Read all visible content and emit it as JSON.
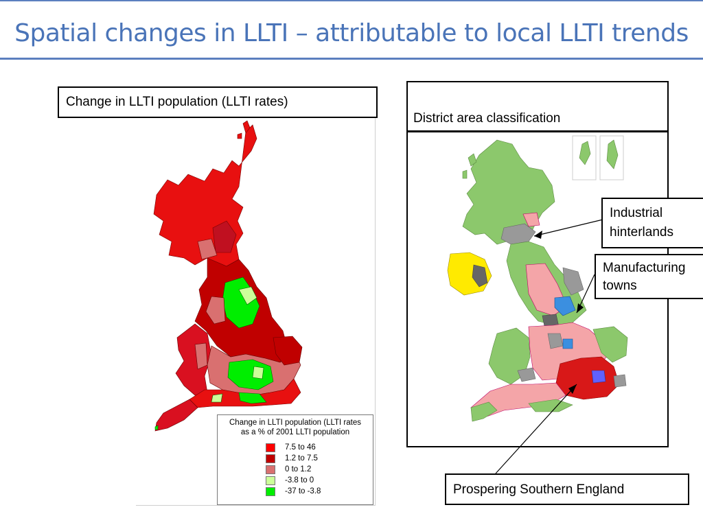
{
  "slide": {
    "title": "Spatial changes in LLTI – attributable to local LLTI trends"
  },
  "left_map": {
    "heading": "Change in LLTI population (LLTI rates)",
    "legend": {
      "title_line1": "Change in LLTI population (LLTI rates",
      "title_line2": "as a % of 2001 LLTI population",
      "items": [
        {
          "label": "7.5 to 46",
          "color": "#ff0000"
        },
        {
          "label": "1.2 to  7.5",
          "color": "#c00000"
        },
        {
          "label": "0    to  1.2",
          "color": "#d97070"
        },
        {
          "label": "-3.8 to  0",
          "color": "#ccff99"
        },
        {
          "label": "-37   to -3.8",
          "color": "#00ee00"
        }
      ]
    }
  },
  "right_map": {
    "heading": "District area classification",
    "callouts": {
      "industrial_line1": "Industrial",
      "industrial_line2": "hinterlands",
      "manufacturing_line1": "Manufacturing",
      "manufacturing_line2": "towns",
      "southern": "Prospering Southern England"
    }
  },
  "colors": {
    "title": "#4a74b8",
    "rule": "#5b7fbf",
    "classification_green": "#8cc86c",
    "classification_pink": "#f4a5a8",
    "classification_red": "#d81818",
    "classification_grey": "#999999",
    "classification_blue": "#3b8fe0",
    "classification_yellow": "#ffea00"
  }
}
